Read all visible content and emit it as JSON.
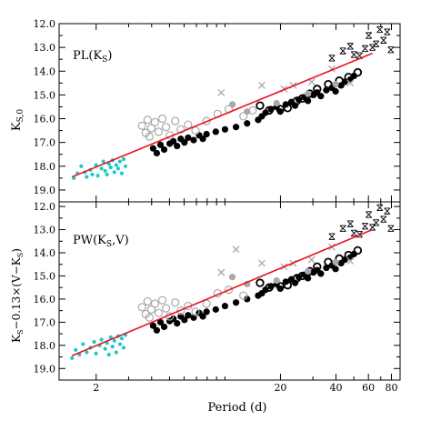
{
  "chart_data": [
    {
      "type": "scatter",
      "panel_label": "PL(K",
      "panel_label_sub": "S",
      "panel_label_close": ")",
      "ylabel_main": "K",
      "ylabel_sub": "S,0",
      "xscale": "log",
      "xlim": [
        0.1,
        1.95
      ],
      "ylim_inverted": [
        12.0,
        19.5
      ],
      "yticks": [
        12.0,
        13.0,
        14.0,
        15.0,
        16.0,
        17.0,
        18.0,
        19.0
      ],
      "ytick_labels": [
        "12.0",
        "13.0",
        "14.0",
        "15.0",
        "16.0",
        "17.0",
        "18.0",
        "19.0"
      ],
      "fit_line": {
        "color": "#e8141e",
        "x": [
          0.17,
          1.8
        ],
        "y": [
          18.45,
          13.25
        ]
      },
      "series": [
        {
          "marker": "dot-cyan",
          "color": "#1ec8c8",
          "points": [
            [
              0.18,
              18.5
            ],
            [
              0.2,
              18.3
            ],
            [
              0.22,
              18.0
            ],
            [
              0.24,
              18.25
            ],
            [
              0.25,
              18.45
            ],
            [
              0.27,
              18.15
            ],
            [
              0.28,
              18.35
            ],
            [
              0.3,
              17.95
            ],
            [
              0.31,
              18.4
            ],
            [
              0.33,
              18.1
            ],
            [
              0.34,
              17.8
            ],
            [
              0.35,
              18.2
            ],
            [
              0.36,
              18.35
            ],
            [
              0.37,
              17.9
            ],
            [
              0.38,
              18.05
            ],
            [
              0.39,
              17.75
            ],
            [
              0.4,
              18.25
            ],
            [
              0.41,
              17.95
            ],
            [
              0.42,
              18.1
            ],
            [
              0.43,
              17.8
            ],
            [
              0.44,
              18.3
            ],
            [
              0.45,
              17.7
            ],
            [
              0.46,
              18.0
            ]
          ]
        },
        {
          "marker": "dot-black",
          "color": "#000000",
          "points": [
            [
              0.61,
              17.25
            ],
            [
              0.63,
              17.45
            ],
            [
              0.65,
              17.1
            ],
            [
              0.67,
              17.3
            ],
            [
              0.7,
              17.05
            ],
            [
              0.72,
              16.95
            ],
            [
              0.74,
              17.15
            ],
            [
              0.76,
              16.85
            ],
            [
              0.78,
              17.0
            ],
            [
              0.8,
              16.8
            ],
            [
              0.83,
              16.9
            ],
            [
              0.86,
              16.7
            ],
            [
              0.88,
              16.85
            ],
            [
              0.9,
              16.65
            ],
            [
              0.95,
              16.55
            ],
            [
              1.0,
              16.45
            ],
            [
              1.06,
              16.35
            ],
            [
              1.12,
              16.2
            ],
            [
              1.18,
              16.05
            ],
            [
              1.2,
              15.9
            ],
            [
              1.22,
              15.75
            ],
            [
              1.25,
              15.6
            ],
            [
              1.28,
              15.5
            ],
            [
              1.3,
              15.7
            ],
            [
              1.33,
              15.4
            ],
            [
              1.36,
              15.3
            ],
            [
              1.38,
              15.45
            ],
            [
              1.4,
              15.2
            ],
            [
              1.43,
              15.1
            ],
            [
              1.45,
              15.25
            ],
            [
              1.48,
              15.0
            ],
            [
              1.5,
              14.9
            ],
            [
              1.52,
              15.05
            ],
            [
              1.55,
              14.8
            ],
            [
              1.58,
              14.7
            ],
            [
              1.6,
              14.85
            ],
            [
              1.63,
              14.6
            ],
            [
              1.65,
              14.45
            ],
            [
              1.68,
              14.35
            ],
            [
              1.7,
              14.2
            ]
          ]
        },
        {
          "marker": "open-circle-black",
          "color": "#000000",
          "points": [
            [
              1.19,
              15.45
            ],
            [
              1.24,
              15.65
            ],
            [
              1.3,
              15.6
            ],
            [
              1.34,
              15.55
            ],
            [
              1.39,
              15.25
            ],
            [
              1.42,
              15.15
            ],
            [
              1.46,
              14.95
            ],
            [
              1.5,
              14.75
            ],
            [
              1.56,
              14.55
            ],
            [
              1.62,
              14.4
            ],
            [
              1.67,
              14.25
            ],
            [
              1.72,
              14.05
            ]
          ]
        },
        {
          "marker": "open-circle-grey",
          "color": "#a8a8a8",
          "points": [
            [
              0.55,
              16.3
            ],
            [
              0.57,
              16.6
            ],
            [
              0.58,
              16.05
            ],
            [
              0.59,
              16.75
            ],
            [
              0.6,
              16.4
            ],
            [
              0.62,
              16.15
            ],
            [
              0.64,
              16.55
            ],
            [
              0.66,
              16.0
            ],
            [
              0.68,
              16.35
            ],
            [
              0.7,
              16.7
            ],
            [
              0.73,
              16.1
            ],
            [
              0.76,
              16.45
            ],
            [
              0.8,
              16.25
            ],
            [
              0.84,
              16.5
            ],
            [
              0.9,
              16.1
            ],
            [
              0.96,
              15.8
            ],
            [
              1.02,
              15.6
            ],
            [
              1.1,
              15.9
            ],
            [
              1.15,
              15.65
            ]
          ]
        },
        {
          "marker": "filled-circle-grey",
          "color": "#a8a8a8",
          "points": [
            [
              1.04,
              15.4
            ],
            [
              1.12,
              15.7
            ],
            [
              1.28,
              15.35
            ],
            [
              1.45,
              14.95
            ],
            [
              1.6,
              14.55
            ]
          ]
        },
        {
          "marker": "cross-grey",
          "color": "#a8a8a8",
          "points": [
            [
              0.98,
              14.9
            ],
            [
              1.2,
              14.6
            ],
            [
              1.32,
              14.75
            ],
            [
              1.37,
              14.6
            ],
            [
              1.47,
              14.45
            ],
            [
              1.58,
              13.9
            ],
            [
              1.68,
              14.5
            ]
          ]
        },
        {
          "marker": "star-open",
          "color": "#000000",
          "points": [
            [
              1.58,
              13.45
            ],
            [
              1.64,
              13.15
            ],
            [
              1.68,
              12.95
            ],
            [
              1.7,
              13.3
            ],
            [
              1.73,
              13.35
            ],
            [
              1.76,
              13.05
            ],
            [
              1.78,
              12.5
            ],
            [
              1.8,
              13.0
            ],
            [
              1.82,
              12.85
            ],
            [
              1.84,
              12.25
            ],
            [
              1.86,
              12.7
            ],
            [
              1.88,
              12.35
            ],
            [
              1.9,
              13.1
            ]
          ]
        }
      ]
    },
    {
      "type": "scatter",
      "panel_label": "PW(K",
      "panel_label_sub": "S",
      "panel_label_close": ",V)",
      "ylabel_main": "K",
      "ylabel_sub": "S",
      "ylabel_rest": "−0.13×(V−K",
      "ylabel_rest_sub": "S",
      "ylabel_close": ")",
      "xscale": "log",
      "xlim": [
        0.1,
        1.95
      ],
      "ylim_inverted": [
        11.8,
        19.5
      ],
      "yticks": [
        12.0,
        13.0,
        14.0,
        15.0,
        16.0,
        17.0,
        18.0,
        19.0
      ],
      "ytick_labels": [
        "12.0",
        "13.0",
        "14.0",
        "15.0",
        "16.0",
        "17.0",
        "18.0",
        "19.0"
      ],
      "fit_line": {
        "color": "#e8141e",
        "x": [
          0.17,
          1.8
        ],
        "y": [
          18.45,
          13.0
        ]
      },
      "series": [
        {
          "marker": "dot-cyan",
          "color": "#1ec8c8",
          "points": [
            [
              0.17,
              18.55
            ],
            [
              0.19,
              18.2
            ],
            [
              0.21,
              18.4
            ],
            [
              0.23,
              17.95
            ],
            [
              0.25,
              18.3
            ],
            [
              0.27,
              18.1
            ],
            [
              0.29,
              17.85
            ],
            [
              0.3,
              18.35
            ],
            [
              0.32,
              18.0
            ],
            [
              0.33,
              17.75
            ],
            [
              0.35,
              18.15
            ],
            [
              0.36,
              17.9
            ],
            [
              0.37,
              18.4
            ],
            [
              0.38,
              17.65
            ],
            [
              0.39,
              18.05
            ],
            [
              0.4,
              17.8
            ],
            [
              0.41,
              18.3
            ],
            [
              0.42,
              17.6
            ],
            [
              0.43,
              17.95
            ],
            [
              0.44,
              17.7
            ],
            [
              0.45,
              18.1
            ],
            [
              0.46,
              17.55
            ]
          ]
        },
        {
          "marker": "dot-black",
          "color": "#000000",
          "points": [
            [
              0.61,
              17.15
            ],
            [
              0.63,
              17.35
            ],
            [
              0.65,
              17.0
            ],
            [
              0.67,
              17.2
            ],
            [
              0.7,
              16.95
            ],
            [
              0.72,
              16.85
            ],
            [
              0.74,
              17.05
            ],
            [
              0.76,
              16.75
            ],
            [
              0.78,
              16.9
            ],
            [
              0.8,
              16.7
            ],
            [
              0.83,
              16.8
            ],
            [
              0.86,
              16.6
            ],
            [
              0.88,
              16.75
            ],
            [
              0.9,
              16.55
            ],
            [
              0.95,
              16.45
            ],
            [
              1.0,
              16.3
            ],
            [
              1.06,
              16.15
            ],
            [
              1.12,
              16.0
            ],
            [
              1.18,
              15.85
            ],
            [
              1.2,
              15.75
            ],
            [
              1.22,
              15.6
            ],
            [
              1.25,
              15.45
            ],
            [
              1.28,
              15.35
            ],
            [
              1.3,
              15.55
            ],
            [
              1.33,
              15.25
            ],
            [
              1.36,
              15.15
            ],
            [
              1.38,
              15.3
            ],
            [
              1.4,
              15.05
            ],
            [
              1.43,
              14.95
            ],
            [
              1.45,
              15.1
            ],
            [
              1.48,
              14.85
            ],
            [
              1.5,
              14.75
            ],
            [
              1.52,
              14.9
            ],
            [
              1.55,
              14.65
            ],
            [
              1.58,
              14.55
            ],
            [
              1.6,
              14.7
            ],
            [
              1.63,
              14.45
            ],
            [
              1.65,
              14.3
            ],
            [
              1.68,
              14.2
            ],
            [
              1.7,
              14.05
            ]
          ]
        },
        {
          "marker": "open-circle-black",
          "color": "#000000",
          "points": [
            [
              1.19,
              15.3
            ],
            [
              1.24,
              15.5
            ],
            [
              1.3,
              15.45
            ],
            [
              1.34,
              15.4
            ],
            [
              1.39,
              15.1
            ],
            [
              1.42,
              15.0
            ],
            [
              1.46,
              14.8
            ],
            [
              1.5,
              14.6
            ],
            [
              1.56,
              14.4
            ],
            [
              1.62,
              14.25
            ],
            [
              1.67,
              14.1
            ],
            [
              1.72,
              13.9
            ]
          ]
        },
        {
          "marker": "open-circle-grey",
          "color": "#a8a8a8",
          "points": [
            [
              0.55,
              16.35
            ],
            [
              0.57,
              16.65
            ],
            [
              0.58,
              16.1
            ],
            [
              0.59,
              16.8
            ],
            [
              0.6,
              16.45
            ],
            [
              0.62,
              16.2
            ],
            [
              0.64,
              16.6
            ],
            [
              0.66,
              16.05
            ],
            [
              0.68,
              16.4
            ],
            [
              0.7,
              16.75
            ],
            [
              0.73,
              16.15
            ],
            [
              0.76,
              16.5
            ],
            [
              0.8,
              16.3
            ],
            [
              0.84,
              16.55
            ],
            [
              0.9,
              16.2
            ],
            [
              0.96,
              15.75
            ],
            [
              1.02,
              15.6
            ],
            [
              1.1,
              15.85
            ]
          ]
        },
        {
          "marker": "filled-circle-grey",
          "color": "#a8a8a8",
          "points": [
            [
              1.04,
              15.05
            ],
            [
              1.12,
              15.35
            ],
            [
              1.28,
              15.2
            ],
            [
              1.45,
              14.8
            ],
            [
              1.6,
              14.4
            ]
          ]
        },
        {
          "marker": "cross-grey",
          "color": "#a8a8a8",
          "points": [
            [
              0.98,
              14.85
            ],
            [
              1.06,
              13.85
            ],
            [
              1.2,
              14.45
            ],
            [
              1.32,
              14.6
            ],
            [
              1.37,
              14.45
            ],
            [
              1.47,
              14.3
            ],
            [
              1.58,
              13.75
            ],
            [
              1.68,
              14.35
            ]
          ]
        },
        {
          "marker": "star-open",
          "color": "#000000",
          "points": [
            [
              1.58,
              13.3
            ],
            [
              1.64,
              12.95
            ],
            [
              1.68,
              12.75
            ],
            [
              1.7,
              13.15
            ],
            [
              1.73,
              13.2
            ],
            [
              1.76,
              12.85
            ],
            [
              1.78,
              12.35
            ],
            [
              1.8,
              12.9
            ],
            [
              1.82,
              12.7
            ],
            [
              1.84,
              12.05
            ],
            [
              1.86,
              12.55
            ],
            [
              1.88,
              12.2
            ],
            [
              1.9,
              12.95
            ]
          ]
        }
      ]
    }
  ],
  "xaxis": {
    "label": "Period (d)",
    "tick_labels": [
      {
        "text": "2",
        "value": 2
      },
      {
        "text": "20",
        "value": 20
      },
      {
        "text": "40",
        "value": 40
      },
      {
        "text": "60",
        "value": 60
      },
      {
        "text": "80",
        "value": 80
      }
    ]
  }
}
